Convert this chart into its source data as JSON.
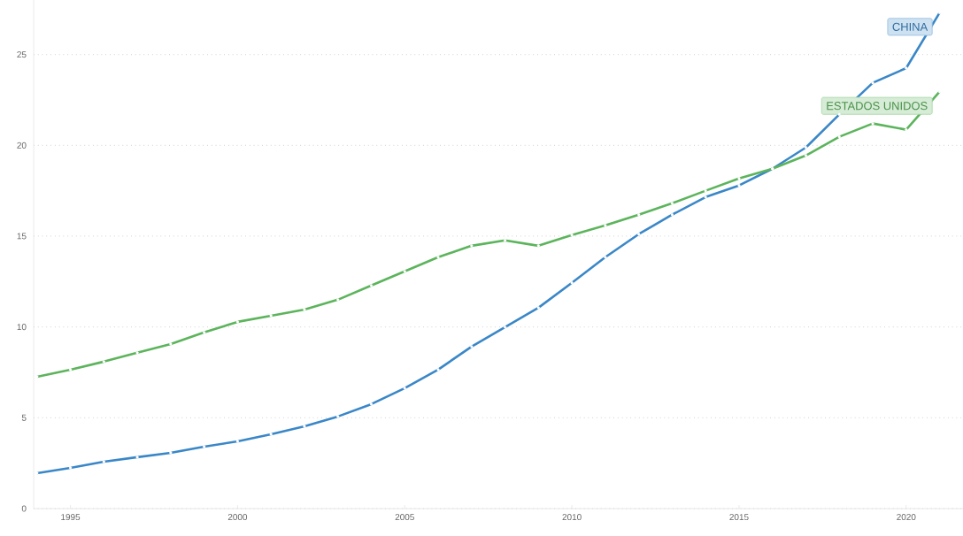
{
  "chart_data": {
    "type": "line",
    "x": [
      1994,
      1995,
      1996,
      1997,
      1998,
      1999,
      2000,
      2001,
      2002,
      2003,
      2004,
      2005,
      2006,
      2007,
      2008,
      2009,
      2010,
      2011,
      2012,
      2013,
      2014,
      2015,
      2016,
      2017,
      2018,
      2019,
      2020,
      2021
    ],
    "series": [
      {
        "name": "CHINA",
        "color": "#3a87c8",
        "values": [
          1.95,
          2.24,
          2.58,
          2.83,
          3.07,
          3.41,
          3.7,
          4.09,
          4.53,
          5.07,
          5.75,
          6.63,
          7.65,
          8.92,
          9.99,
          11.06,
          12.43,
          13.84,
          15.11,
          16.18,
          17.15,
          17.79,
          18.71,
          19.88,
          21.7,
          23.44,
          24.25,
          27.3
        ]
      },
      {
        "name": "ESTADOS UNIDOS",
        "color": "#5cb45c",
        "values": [
          7.26,
          7.65,
          8.09,
          8.58,
          9.06,
          9.7,
          10.28,
          10.62,
          10.96,
          11.5,
          12.28,
          13.06,
          13.84,
          14.47,
          14.77,
          14.47,
          15.06,
          15.59,
          16.18,
          16.81,
          17.5,
          18.18,
          18.71,
          19.44,
          20.47,
          21.2,
          20.86,
          22.95
        ]
      }
    ],
    "xlim": [
      1993.9,
      2021.7
    ],
    "ylim": [
      0,
      28
    ],
    "xticks": [
      1995,
      2000,
      2005,
      2010,
      2015,
      2020
    ],
    "yticks": [
      0,
      5,
      10,
      15,
      20,
      25
    ],
    "grid": "y",
    "legend": false,
    "marker": "circle",
    "line_style": "solid"
  }
}
